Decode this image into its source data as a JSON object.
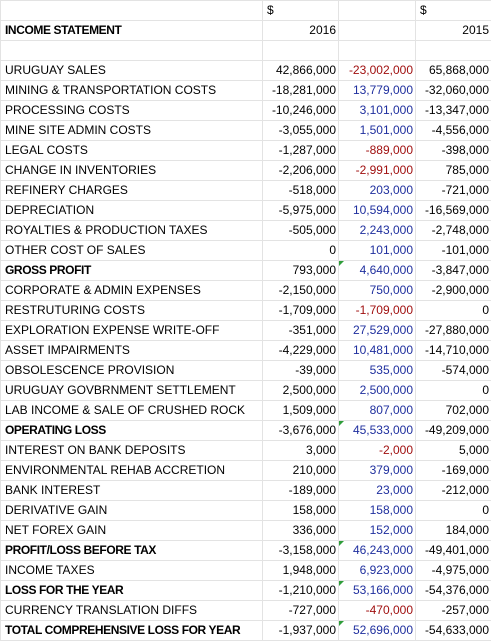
{
  "header": {
    "currency_2016": "$",
    "currency_2015": "$",
    "statement_title": "INCOME STATEMENT",
    "year_current": "2016",
    "year_prior": "2015"
  },
  "rows": [
    {
      "label": "URUGUAY SALES",
      "y2016": "42,866,000",
      "variance": "-23,002,000",
      "y2015": "65,868,000",
      "variance_sign": "neg",
      "bold": false
    },
    {
      "label": "MINING & TRANSPORTATION COSTS",
      "y2016": "-18,281,000",
      "variance": "13,779,000",
      "y2015": "-32,060,000",
      "variance_sign": "pos",
      "bold": false
    },
    {
      "label": "PROCESSING COSTS",
      "y2016": "-10,246,000",
      "variance": "3,101,000",
      "y2015": "-13,347,000",
      "variance_sign": "pos",
      "bold": false
    },
    {
      "label": "MINE SITE ADMIN COSTS",
      "y2016": "-3,055,000",
      "variance": "1,501,000",
      "y2015": "-4,556,000",
      "variance_sign": "pos",
      "bold": false
    },
    {
      "label": "LEGAL COSTS",
      "y2016": "-1,287,000",
      "variance": "-889,000",
      "y2015": "-398,000",
      "variance_sign": "neg",
      "bold": false
    },
    {
      "label": "CHANGE IN INVENTORIES",
      "y2016": "-2,206,000",
      "variance": "-2,991,000",
      "y2015": "785,000",
      "variance_sign": "neg",
      "bold": false
    },
    {
      "label": "REFINERY CHARGES",
      "y2016": "-518,000",
      "variance": "203,000",
      "y2015": "-721,000",
      "variance_sign": "pos",
      "bold": false
    },
    {
      "label": "DEPRECIATION",
      "y2016": "-5,975,000",
      "variance": "10,594,000",
      "y2015": "-16,569,000",
      "variance_sign": "pos",
      "bold": false
    },
    {
      "label": "ROYALTIES & PRODUCTION TAXES",
      "y2016": "-505,000",
      "variance": "2,243,000",
      "y2015": "-2,748,000",
      "variance_sign": "pos",
      "bold": false
    },
    {
      "label": "OTHER COST OF SALES",
      "y2016": "0",
      "variance": "101,000",
      "y2015": "-101,000",
      "variance_sign": "pos",
      "bold": false
    },
    {
      "label": "GROSS PROFIT",
      "y2016": "793,000",
      "variance": "4,640,000",
      "y2015": "-3,847,000",
      "variance_sign": "pos",
      "bold": true,
      "marker": true
    },
    {
      "label": "CORPORATE & ADMIN EXPENSES",
      "y2016": "-2,150,000",
      "variance": "750,000",
      "y2015": "-2,900,000",
      "variance_sign": "pos",
      "bold": false
    },
    {
      "label": "RESTRUTURING COSTS",
      "y2016": "-1,709,000",
      "variance": "-1,709,000",
      "y2015": "0",
      "variance_sign": "neg",
      "bold": false
    },
    {
      "label": "EXPLORATION EXPENSE WRITE-OFF",
      "y2016": "-351,000",
      "variance": "27,529,000",
      "y2015": "-27,880,000",
      "variance_sign": "pos",
      "bold": false
    },
    {
      "label": "ASSET IMPAIRMENTS",
      "y2016": "-4,229,000",
      "variance": "10,481,000",
      "y2015": "-14,710,000",
      "variance_sign": "pos",
      "bold": false
    },
    {
      "label": "OBSOLESCENCE PROVISION",
      "y2016": "-39,000",
      "variance": "535,000",
      "y2015": "-574,000",
      "variance_sign": "pos",
      "bold": false
    },
    {
      "label": "URUGUAY GOVBRNMENT SETTLEMENT",
      "y2016": "2,500,000",
      "variance": "2,500,000",
      "y2015": "0",
      "variance_sign": "pos",
      "bold": false
    },
    {
      "label": "LAB INCOME & SALE OF CRUSHED ROCK",
      "y2016": "1,509,000",
      "variance": "807,000",
      "y2015": "702,000",
      "variance_sign": "pos",
      "bold": false
    },
    {
      "label": "OPERATING LOSS",
      "y2016": "-3,676,000",
      "variance": "45,533,000",
      "y2015": "-49,209,000",
      "variance_sign": "pos",
      "bold": true,
      "marker": true
    },
    {
      "label": "INTEREST ON BANK DEPOSITS",
      "y2016": "3,000",
      "variance": "-2,000",
      "y2015": "5,000",
      "variance_sign": "neg",
      "bold": false
    },
    {
      "label": "ENVIRONMENTAL REHAB ACCRETION",
      "y2016": "210,000",
      "variance": "379,000",
      "y2015": "-169,000",
      "variance_sign": "pos",
      "bold": false
    },
    {
      "label": "BANK INTEREST",
      "y2016": "-189,000",
      "variance": "23,000",
      "y2015": "-212,000",
      "variance_sign": "pos",
      "bold": false
    },
    {
      "label": "DERIVATIVE GAIN",
      "y2016": "158,000",
      "variance": "158,000",
      "y2015": "0",
      "variance_sign": "pos",
      "bold": false
    },
    {
      "label": "NET FOREX GAIN",
      "y2016": "336,000",
      "variance": "152,000",
      "y2015": "184,000",
      "variance_sign": "pos",
      "bold": false
    },
    {
      "label": "PROFIT/LOSS BEFORE TAX",
      "y2016": "-3,158,000",
      "variance": "46,243,000",
      "y2015": "-49,401,000",
      "variance_sign": "pos",
      "bold": true,
      "marker": true
    },
    {
      "label": "INCOME TAXES",
      "y2016": "1,948,000",
      "variance": "6,923,000",
      "y2015": "-4,975,000",
      "variance_sign": "pos",
      "bold": false
    },
    {
      "label": "LOSS FOR THE YEAR",
      "y2016": "-1,210,000",
      "variance": "53,166,000",
      "y2015": "-54,376,000",
      "variance_sign": "pos",
      "bold": true,
      "marker": true
    },
    {
      "label": "CURRENCY TRANSLATION DIFFS",
      "y2016": "-727,000",
      "variance": "-470,000",
      "y2015": "-257,000",
      "variance_sign": "neg",
      "bold": false
    },
    {
      "label": "TOTAL COMPREHENSIVE  LOSS FOR YEAR",
      "y2016": "-1,937,000",
      "variance": "52,696,000",
      "y2015": "-54,633,000",
      "variance_sign": "pos",
      "bold": true,
      "marker": true
    }
  ],
  "colors": {
    "positive_variance": "#1f2f9e",
    "negative_variance": "#a01010",
    "cell_marker": "#2f9e3a"
  }
}
